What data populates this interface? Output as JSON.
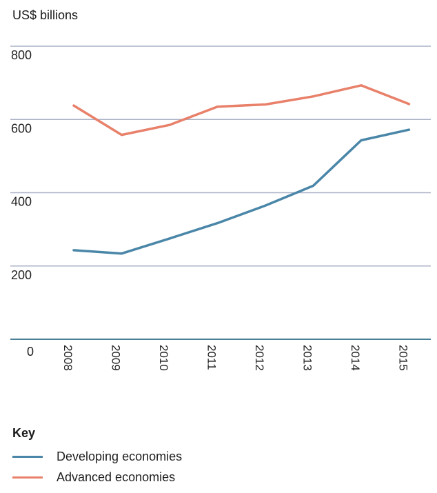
{
  "chart_data": {
    "type": "line",
    "ylabel": "US$ billions",
    "ylim": [
      0,
      800
    ],
    "yticks": [
      0,
      200,
      400,
      600,
      800
    ],
    "grid": true,
    "categories": [
      "2008",
      "2009",
      "2010",
      "2011",
      "2012",
      "2013",
      "2014",
      "2015"
    ],
    "series": [
      {
        "name": "Developing economies",
        "color": "#4a86a8",
        "values": [
          243,
          234,
          275,
          317,
          365,
          419,
          543,
          572
        ]
      },
      {
        "name": "Advanced economies",
        "color": "#e8806a",
        "values": [
          638,
          558,
          585,
          635,
          641,
          663,
          693,
          642
        ]
      }
    ]
  },
  "legend": {
    "title": "Key",
    "placement": "bottom-left",
    "items": [
      {
        "label": "Developing economies",
        "color": "#4a86a8"
      },
      {
        "label": "Advanced economies",
        "color": "#e8806a"
      }
    ]
  }
}
